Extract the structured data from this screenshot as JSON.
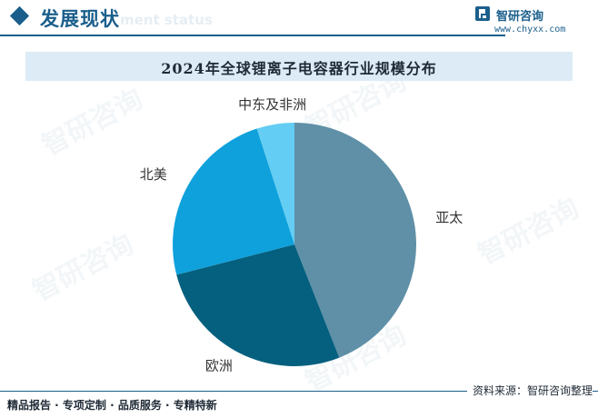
{
  "header": {
    "title": "发展现状",
    "subtitle_fragment": "ment status",
    "brand_name": "智研咨询",
    "brand_url": "www.chyxx.com"
  },
  "watermark_text": "智研咨询",
  "colors": {
    "accent": "#1a5f8c",
    "title_bar": "#dcebf5"
  },
  "chart_data": {
    "type": "pie",
    "title": "2024年全球锂离子电容器行业规模分布",
    "categories": [
      "亚太",
      "欧洲",
      "北美",
      "中东及非洲"
    ],
    "values": [
      44,
      27,
      24,
      5
    ],
    "colors": [
      "#5f90a7",
      "#05607f",
      "#0fa1dc",
      "#63cdf3"
    ],
    "legend": "none",
    "start": "12 o'clock, clockwise"
  },
  "footer": {
    "left": "精品报告 · 专项定制 · 品质服务 · 专精特新",
    "right": "资料来源：智研咨询整理"
  }
}
